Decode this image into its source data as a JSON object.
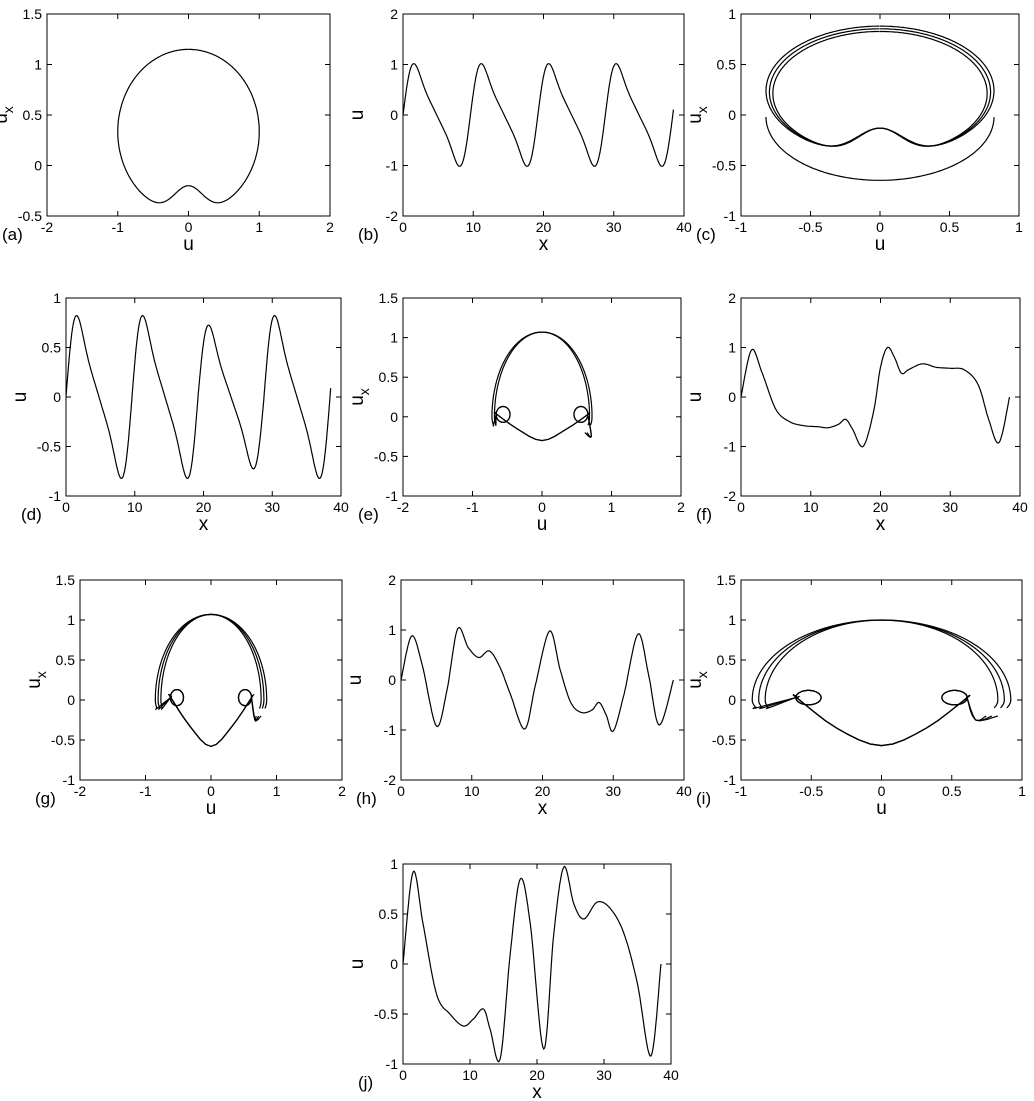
{
  "chart_data": [
    {
      "id": "a",
      "panel_label": "(a)",
      "type": "line",
      "kind": "phase",
      "curve": "heart",
      "xlabel": "u",
      "ylabel": "u_x",
      "xlim": [
        -2,
        2
      ],
      "ylim": [
        -0.5,
        1.5
      ],
      "xticks": [
        "-2",
        "-1",
        "0",
        "1",
        "2"
      ],
      "yticks": [
        "-0.5",
        "0",
        "0.5",
        "1",
        "1.5"
      ],
      "xticks_v": [
        -2,
        -1,
        0,
        1,
        2
      ],
      "yticks_v": [
        -0.5,
        0,
        0.5,
        1,
        1.5
      ],
      "params": {
        "A": 1.0,
        "B": 1.15,
        "C": -0.48,
        "notch": 0.28
      }
    },
    {
      "id": "b",
      "panel_label": "(b)",
      "type": "line",
      "kind": "series",
      "curve": "periodic",
      "xlabel": "x",
      "ylabel": "u",
      "xlim": [
        0,
        40
      ],
      "ylim": [
        -2,
        2
      ],
      "xticks": [
        "0",
        "10",
        "20",
        "30",
        "40"
      ],
      "yticks": [
        "-2",
        "-1",
        "0",
        "1",
        "2"
      ],
      "xticks_v": [
        0,
        10,
        20,
        30,
        40
      ],
      "yticks_v": [
        -2,
        -1,
        0,
        1,
        2
      ],
      "params": {
        "period": 9.6,
        "amps": [
          1.05,
          1.05,
          1.05,
          1.05
        ],
        "end": 38.5
      }
    },
    {
      "id": "c",
      "panel_label": "(c)",
      "type": "line",
      "kind": "phase",
      "curve": "heart-multi",
      "xlabel": "u",
      "ylabel": "u_x",
      "xlim": [
        -1,
        1
      ],
      "ylim": [
        -1,
        1
      ],
      "xticks": [
        "-1",
        "-0.5",
        "0",
        "0.5",
        "1"
      ],
      "yticks": [
        "-1",
        "-0.5",
        "0",
        "0.5",
        "1"
      ],
      "xticks_v": [
        -1,
        -0.5,
        0,
        0.5,
        1
      ],
      "yticks_v": [
        -1,
        -0.5,
        0,
        0.5,
        1
      ],
      "params": {
        "A": 0.82,
        "B": 0.88,
        "C": -0.4,
        "notch": 0.27,
        "extraBottom": -0.66
      }
    },
    {
      "id": "d",
      "panel_label": "(d)",
      "type": "line",
      "kind": "series",
      "curve": "periodic",
      "xlabel": "x",
      "ylabel": "u",
      "xlim": [
        0,
        40
      ],
      "ylim": [
        -1,
        1
      ],
      "xticks": [
        "0",
        "10",
        "20",
        "30",
        "40"
      ],
      "yticks": [
        "-1",
        "-0.5",
        "0",
        "0.5",
        "1"
      ],
      "xticks_v": [
        0,
        10,
        20,
        30,
        40
      ],
      "yticks_v": [
        -1,
        -0.5,
        0,
        0.5,
        1
      ],
      "params": {
        "period": 9.6,
        "amps": [
          0.85,
          0.85,
          0.75,
          0.85
        ],
        "end": 38.5
      }
    },
    {
      "id": "e",
      "panel_label": "(e)",
      "type": "line",
      "kind": "phase",
      "curve": "loops",
      "xlabel": "u",
      "ylabel": "u_x",
      "xlim": [
        -2,
        2
      ],
      "ylim": [
        -1,
        1.5
      ],
      "xticks": [
        "-2",
        "-1",
        "0",
        "1",
        "2"
      ],
      "yticks": [
        "-1",
        "-0.5",
        "0",
        "0.5",
        "1",
        "1.5"
      ],
      "xticks_v": [
        -2,
        -1,
        0,
        1,
        2
      ],
      "yticks_v": [
        -1,
        -0.5,
        0,
        0.5,
        1,
        1.5
      ],
      "params": {
        "A": 0.72,
        "B": 1.07,
        "loopX": 0.56,
        "loopR": 0.1,
        "cross": -0.15,
        "bottom": -0.45,
        "n": 2
      }
    },
    {
      "id": "f",
      "panel_label": "(f)",
      "type": "line",
      "kind": "series",
      "curve": "points",
      "xlabel": "x",
      "ylabel": "u",
      "xlim": [
        0,
        40
      ],
      "ylim": [
        -2,
        2
      ],
      "xticks": [
        "0",
        "10",
        "20",
        "30",
        "40"
      ],
      "yticks": [
        "-2",
        "-1",
        "0",
        "1",
        "2"
      ],
      "xticks_v": [
        0,
        10,
        20,
        30,
        40
      ],
      "yticks_v": [
        -2,
        -1,
        0,
        1,
        2
      ],
      "x": [
        0,
        1.5,
        3,
        5,
        7,
        9,
        11,
        12.5,
        14,
        15,
        16,
        17.5,
        19,
        20,
        21,
        22,
        23,
        24,
        26,
        28,
        30,
        32,
        34,
        35.5,
        37,
        38.5
      ],
      "y": [
        0,
        0.95,
        0.5,
        -0.25,
        -0.5,
        -0.58,
        -0.6,
        -0.62,
        -0.55,
        -0.45,
        -0.65,
        -1.0,
        -0.3,
        0.6,
        1.0,
        0.8,
        0.48,
        0.55,
        0.67,
        0.6,
        0.58,
        0.55,
        0.25,
        -0.45,
        -0.92,
        0
      ]
    },
    {
      "id": "g",
      "panel_label": "(g)",
      "type": "line",
      "kind": "phase",
      "curve": "loops",
      "xlabel": "u",
      "ylabel": "u_x",
      "xlim": [
        -2,
        2
      ],
      "ylim": [
        -1,
        1.5
      ],
      "xticks": [
        "-2",
        "-1",
        "0",
        "1",
        "2"
      ],
      "yticks": [
        "-1",
        "-0.5",
        "0",
        "0.5",
        "1",
        "1.5"
      ],
      "xticks_v": [
        -2,
        -1,
        0,
        1,
        2
      ],
      "yticks_v": [
        -1,
        -0.5,
        0,
        0.5,
        1,
        1.5
      ],
      "params": {
        "A": 0.85,
        "B": 1.07,
        "loopX": 0.52,
        "loopR": 0.1,
        "cross": -0.33,
        "bottom": -0.73,
        "n": 3
      }
    },
    {
      "id": "h",
      "panel_label": "(h)",
      "type": "line",
      "kind": "series",
      "curve": "points",
      "xlabel": "x",
      "ylabel": "u",
      "xlim": [
        0,
        40
      ],
      "ylim": [
        -2,
        2
      ],
      "xticks": [
        "0",
        "10",
        "20",
        "30",
        "40"
      ],
      "yticks": [
        "-2",
        "-1",
        "0",
        "1",
        "2"
      ],
      "xticks_v": [
        0,
        10,
        20,
        30,
        40
      ],
      "yticks_v": [
        -2,
        -1,
        0,
        1,
        2
      ],
      "x": [
        0,
        1.5,
        3,
        5,
        6.5,
        8,
        9.5,
        11,
        12.5,
        14,
        15.5,
        17.5,
        19,
        21,
        22.5,
        24,
        25.5,
        27,
        28,
        29,
        30,
        31.5,
        33.5,
        35,
        36.5,
        38.5
      ],
      "y": [
        0,
        0.88,
        0.3,
        -0.92,
        -0.2,
        1.02,
        0.65,
        0.45,
        0.58,
        0.25,
        -0.3,
        -0.98,
        -0.1,
        0.98,
        0.2,
        -0.45,
        -0.65,
        -0.6,
        -0.45,
        -0.7,
        -1.02,
        -0.3,
        0.92,
        0.1,
        -0.9,
        0
      ]
    },
    {
      "id": "i",
      "panel_label": "(i)",
      "type": "line",
      "kind": "phase",
      "curve": "loops",
      "xlabel": "u",
      "ylabel": "u_x",
      "xlim": [
        -1,
        1
      ],
      "ylim": [
        -1,
        1.5
      ],
      "xticks": [
        "-1",
        "-0.5",
        "0",
        "0.5",
        "1"
      ],
      "yticks": [
        "-1",
        "-0.5",
        "0",
        "0.5",
        "1",
        "1.5"
      ],
      "xticks_v": [
        -1,
        -0.5,
        0,
        0.5,
        1
      ],
      "yticks_v": [
        -1,
        -0.5,
        0,
        0.5,
        1,
        1.5
      ],
      "params": {
        "A": 0.92,
        "B": 1.0,
        "loopX": 0.52,
        "loopR": 0.09,
        "cross": -0.35,
        "bottom": -0.72,
        "n": 3
      }
    },
    {
      "id": "j",
      "panel_label": "(j)",
      "type": "line",
      "kind": "series",
      "curve": "points",
      "xlabel": "x",
      "ylabel": "u",
      "xlim": [
        0,
        40
      ],
      "ylim": [
        -1,
        1
      ],
      "xticks": [
        "0",
        "10",
        "20",
        "30",
        "40"
      ],
      "yticks": [
        "-1",
        "-0.5",
        "0",
        "0.5",
        "1"
      ],
      "xticks_v": [
        0,
        10,
        20,
        30,
        40
      ],
      "yticks_v": [
        -1,
        -0.5,
        0,
        0.5,
        1
      ],
      "x": [
        0,
        1.5,
        3,
        5,
        7,
        9,
        10.5,
        12,
        13,
        14.5,
        16,
        17.5,
        19,
        21,
        22.5,
        24,
        25.5,
        27,
        29,
        31,
        33,
        35,
        37,
        38.5
      ],
      "y": [
        0,
        0.92,
        0.4,
        -0.3,
        -0.5,
        -0.62,
        -0.55,
        -0.45,
        -0.65,
        -0.95,
        0.1,
        0.85,
        0.4,
        -0.85,
        0.3,
        0.97,
        0.6,
        0.45,
        0.62,
        0.55,
        0.3,
        -0.2,
        -0.92,
        0
      ]
    }
  ]
}
